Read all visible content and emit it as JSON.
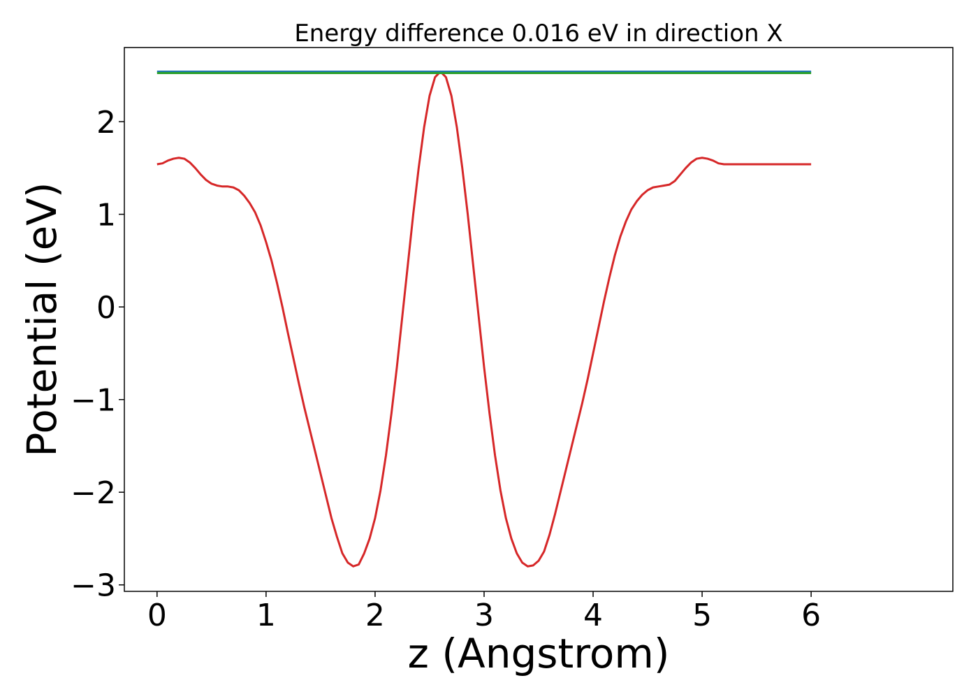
{
  "chart_data": {
    "type": "line",
    "title": "Energy difference 0.016 eV in direction X",
    "xlabel": "z (Angstrom)",
    "ylabel": "Potential (eV)",
    "xlim": [
      -0.3,
      7.3
    ],
    "ylim": [
      -3.07,
      2.8
    ],
    "xticks": [
      0,
      1,
      2,
      3,
      4,
      5,
      6
    ],
    "xtick_labels": [
      "0",
      "1",
      "2",
      "3",
      "4",
      "5",
      "6"
    ],
    "yticks": [
      -3,
      -2,
      -1,
      0,
      1,
      2
    ],
    "ytick_labels": [
      "−3",
      "−2",
      "−1",
      "0",
      "1",
      "2"
    ],
    "grid": false,
    "series": [
      {
        "color": "#d62728",
        "x": [
          0,
          0.05,
          0.1,
          0.15,
          0.2,
          0.25,
          0.3,
          0.35,
          0.4,
          0.45,
          0.5,
          0.55,
          0.6,
          0.65,
          0.7,
          0.75,
          0.8,
          0.85,
          0.9,
          0.95,
          1.0,
          1.05,
          1.1,
          1.15,
          1.2,
          1.25,
          1.3,
          1.35,
          1.4,
          1.45,
          1.5,
          1.55,
          1.6,
          1.65,
          1.7,
          1.75,
          1.8,
          1.85,
          1.9,
          1.95,
          2.0,
          2.05,
          2.1,
          2.15,
          2.2,
          2.25,
          2.3,
          2.35,
          2.4,
          2.45,
          2.5,
          2.55,
          2.6,
          2.65,
          2.7,
          2.75,
          2.8,
          2.85,
          2.9,
          2.95,
          3.0,
          3.05,
          3.1,
          3.15,
          3.2,
          3.25,
          3.3,
          3.35,
          3.4,
          3.45,
          3.5,
          3.55,
          3.6,
          3.65,
          3.7,
          3.75,
          3.8,
          3.85,
          3.9,
          3.95,
          4.0,
          4.05,
          4.1,
          4.15,
          4.2,
          4.25,
          4.3,
          4.35,
          4.4,
          4.45,
          4.5,
          4.55,
          4.6,
          4.65,
          4.7,
          4.75,
          4.8,
          4.85,
          4.9,
          4.95,
          5.0,
          5.05,
          5.1,
          5.15,
          5.2,
          5.25,
          5.3,
          5.35,
          5.4,
          5.45,
          5.5,
          5.55,
          5.6,
          5.65,
          5.7,
          5.75,
          5.8,
          5.85,
          5.9,
          5.95,
          6.0
        ],
        "y": [
          1.54,
          1.55,
          1.58,
          1.6,
          1.61,
          1.6,
          1.56,
          1.5,
          1.43,
          1.37,
          1.33,
          1.31,
          1.3,
          1.3,
          1.29,
          1.26,
          1.2,
          1.12,
          1.02,
          0.88,
          0.7,
          0.5,
          0.26,
          0.0,
          -0.28,
          -0.55,
          -0.82,
          -1.08,
          -1.32,
          -1.56,
          -1.8,
          -2.04,
          -2.28,
          -2.48,
          -2.66,
          -2.76,
          -2.8,
          -2.78,
          -2.66,
          -2.5,
          -2.28,
          -1.98,
          -1.6,
          -1.15,
          -0.65,
          -0.1,
          0.45,
          1.0,
          1.5,
          1.94,
          2.28,
          2.48,
          2.54,
          2.48,
          2.28,
          1.94,
          1.5,
          1.0,
          0.45,
          -0.1,
          -0.65,
          -1.15,
          -1.6,
          -1.98,
          -2.28,
          -2.5,
          -2.66,
          -2.76,
          -2.8,
          -2.79,
          -2.74,
          -2.64,
          -2.46,
          -2.24,
          -2.0,
          -1.76,
          -1.52,
          -1.28,
          -1.04,
          -0.78,
          -0.5,
          -0.22,
          0.06,
          0.32,
          0.56,
          0.76,
          0.92,
          1.05,
          1.14,
          1.21,
          1.26,
          1.29,
          1.3,
          1.31,
          1.32,
          1.36,
          1.43,
          1.5,
          1.56,
          1.6,
          1.61,
          1.6,
          1.58,
          1.55,
          1.54,
          1.54,
          1.54,
          1.54,
          1.54,
          1.54,
          1.54,
          1.54,
          1.54,
          1.54,
          1.54,
          1.54,
          1.54,
          1.54,
          1.54,
          1.54,
          1.54
        ]
      },
      {
        "color": "#1f77b4",
        "x": [
          0,
          6
        ],
        "y": [
          2.54,
          2.54
        ]
      },
      {
        "color": "#2ca02c",
        "x": [
          0,
          6
        ],
        "y": [
          2.525,
          2.525
        ]
      }
    ]
  }
}
